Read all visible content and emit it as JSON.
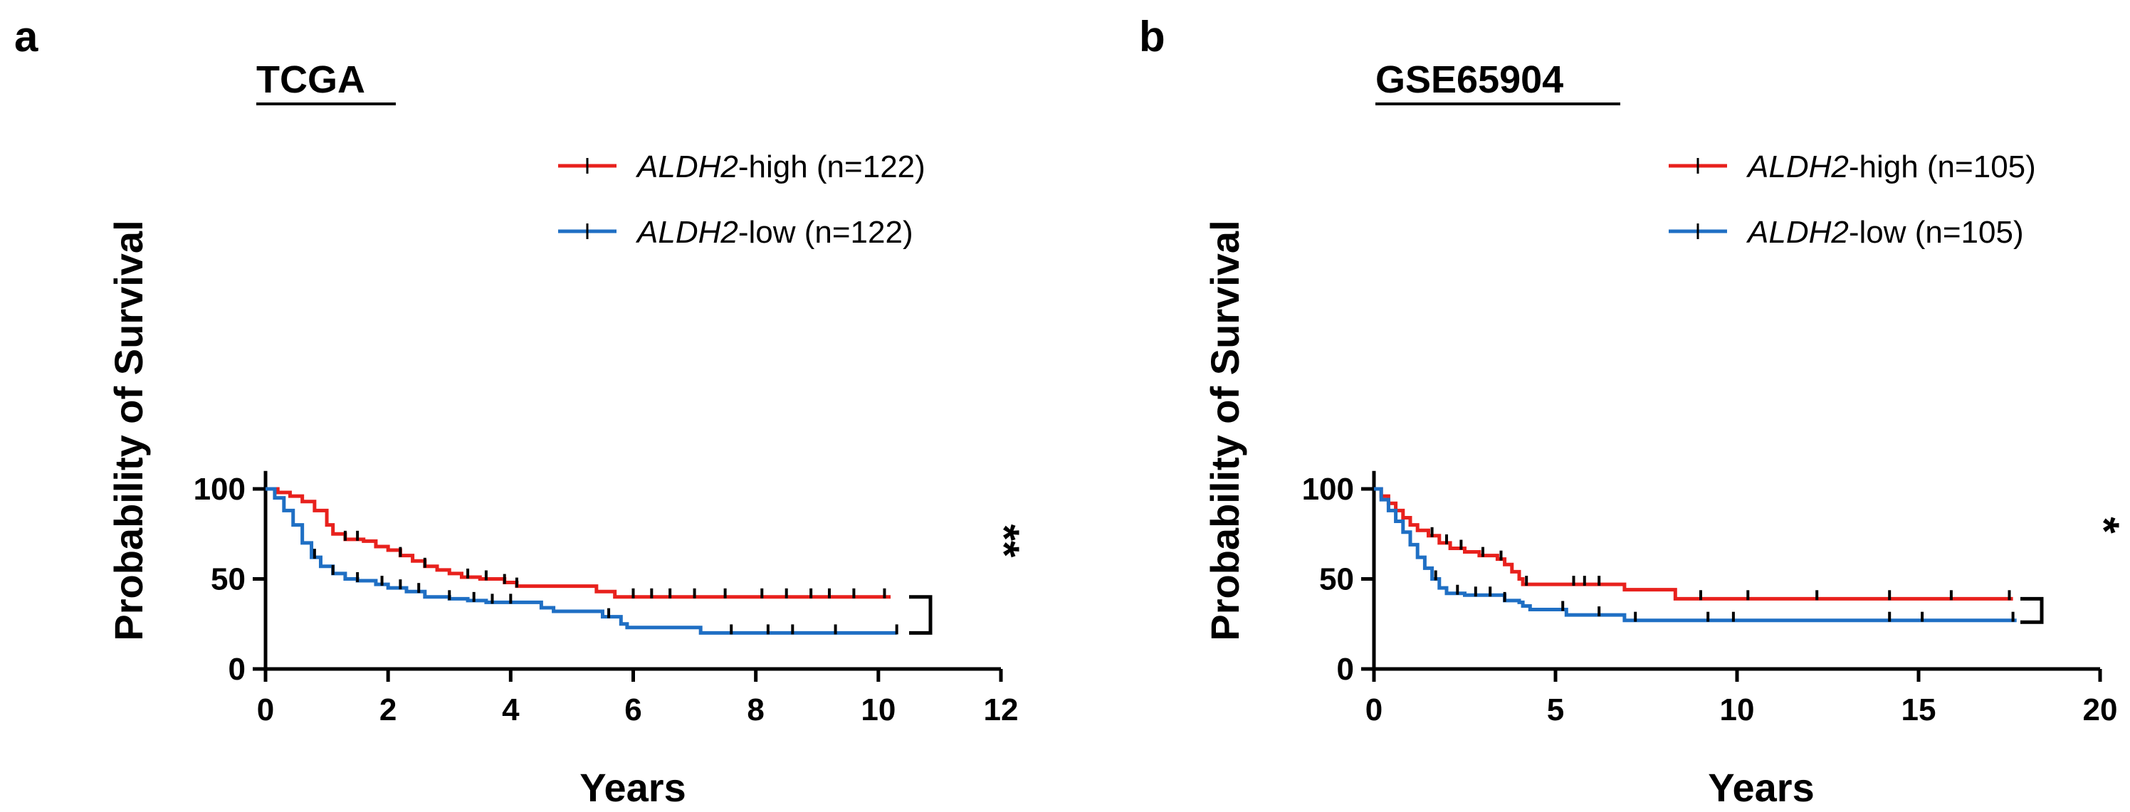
{
  "chart_data": [
    {
      "type": "line",
      "subtype": "kaplan-meier",
      "panel": "a",
      "title": "TCGA",
      "xlabel": "Years",
      "ylabel": "Probability of Survival",
      "xlim": [
        0,
        12
      ],
      "ylim": [
        0,
        110
      ],
      "xticks": [
        0,
        2,
        4,
        6,
        8,
        10,
        12
      ],
      "yticks": [
        0,
        50,
        100
      ],
      "legend_position": "top-right",
      "significance": "**",
      "significance_between": [
        40,
        20
      ],
      "series": [
        {
          "name_italic": "ALDH2",
          "name_rest": "-high (n=122)",
          "color": "#e8211d",
          "points": [
            [
              0,
              100
            ],
            [
              0.2,
              98
            ],
            [
              0.4,
              96
            ],
            [
              0.6,
              93
            ],
            [
              0.8,
              88
            ],
            [
              1.0,
              80
            ],
            [
              1.1,
              75
            ],
            [
              1.3,
              72
            ],
            [
              1.6,
              71
            ],
            [
              1.8,
              68
            ],
            [
              2.0,
              66
            ],
            [
              2.2,
              63
            ],
            [
              2.4,
              60
            ],
            [
              2.6,
              57
            ],
            [
              2.8,
              55
            ],
            [
              3.0,
              53
            ],
            [
              3.2,
              51
            ],
            [
              3.5,
              50
            ],
            [
              3.9,
              48
            ],
            [
              4.1,
              46
            ],
            [
              4.6,
              46
            ],
            [
              5.3,
              46
            ],
            [
              5.4,
              43
            ],
            [
              5.7,
              43
            ],
            [
              5.7,
              40
            ],
            [
              10.2,
              40
            ]
          ],
          "censor": [
            1.3,
            1.5,
            2.2,
            2.6,
            3.3,
            3.6,
            3.9,
            4.1,
            6.0,
            6.3,
            6.6,
            7.0,
            7.5,
            8.1,
            8.5,
            8.9,
            9.2,
            9.6,
            10.1
          ]
        },
        {
          "name_italic": "ALDH2",
          "name_rest": "-low (n=122)",
          "color": "#1f6fc4",
          "points": [
            [
              0,
              100
            ],
            [
              0.15,
              95
            ],
            [
              0.3,
              88
            ],
            [
              0.45,
              80
            ],
            [
              0.6,
              70
            ],
            [
              0.75,
              62
            ],
            [
              0.9,
              57
            ],
            [
              1.1,
              53
            ],
            [
              1.3,
              50
            ],
            [
              1.5,
              49
            ],
            [
              1.8,
              47
            ],
            [
              2.0,
              45
            ],
            [
              2.3,
              43
            ],
            [
              2.6,
              40
            ],
            [
              3.0,
              39
            ],
            [
              3.3,
              38
            ],
            [
              3.6,
              37
            ],
            [
              4.3,
              37
            ],
            [
              4.5,
              34
            ],
            [
              4.7,
              32
            ],
            [
              5.3,
              32
            ],
            [
              5.5,
              29
            ],
            [
              5.8,
              25
            ],
            [
              5.9,
              23
            ],
            [
              7.0,
              23
            ],
            [
              7.1,
              20
            ],
            [
              10.3,
              20
            ]
          ],
          "censor": [
            0.8,
            1.1,
            1.5,
            1.9,
            2.2,
            2.5,
            3.0,
            3.4,
            3.7,
            4.0,
            5.6,
            7.6,
            8.2,
            8.6,
            9.3,
            10.3
          ]
        }
      ]
    },
    {
      "type": "line",
      "subtype": "kaplan-meier",
      "panel": "b",
      "title": "GSE65904",
      "xlabel": "Years",
      "ylabel": "Probability of Survival",
      "xlim": [
        0,
        20
      ],
      "ylim": [
        0,
        110
      ],
      "xticks": [
        0,
        5,
        10,
        15,
        20
      ],
      "yticks": [
        0,
        50,
        100
      ],
      "legend_position": "top-right",
      "significance": "*",
      "significance_between": [
        39,
        26
      ],
      "series": [
        {
          "name_italic": "ALDH2",
          "name_rest": "-high (n=105)",
          "color": "#e8211d",
          "points": [
            [
              0,
              100
            ],
            [
              0.2,
              96
            ],
            [
              0.4,
              92
            ],
            [
              0.6,
              88
            ],
            [
              0.8,
              84
            ],
            [
              1.0,
              80
            ],
            [
              1.2,
              77
            ],
            [
              1.5,
              74
            ],
            [
              1.8,
              70
            ],
            [
              2.1,
              67
            ],
            [
              2.5,
              65
            ],
            [
              2.9,
              63
            ],
            [
              3.4,
              61
            ],
            [
              3.6,
              58
            ],
            [
              3.8,
              54
            ],
            [
              4.0,
              50
            ],
            [
              4.1,
              47
            ],
            [
              4.5,
              47
            ],
            [
              6.8,
              47
            ],
            [
              6.9,
              44
            ],
            [
              8.2,
              44
            ],
            [
              8.3,
              39
            ],
            [
              17.6,
              39
            ]
          ],
          "censor": [
            1.6,
            2.0,
            2.4,
            3.0,
            3.5,
            4.2,
            5.5,
            5.8,
            6.2,
            9.0,
            10.3,
            12.2,
            14.2,
            15.9,
            17.5
          ]
        },
        {
          "name_italic": "ALDH2",
          "name_rest": "-low (n=105)",
          "color": "#1f6fc4",
          "points": [
            [
              0,
              100
            ],
            [
              0.2,
              94
            ],
            [
              0.4,
              88
            ],
            [
              0.6,
              82
            ],
            [
              0.8,
              76
            ],
            [
              1.0,
              69
            ],
            [
              1.2,
              62
            ],
            [
              1.4,
              56
            ],
            [
              1.6,
              50
            ],
            [
              1.8,
              45
            ],
            [
              2.0,
              42
            ],
            [
              2.5,
              41
            ],
            [
              3.5,
              41
            ],
            [
              3.6,
              38
            ],
            [
              4.0,
              37
            ],
            [
              4.1,
              35
            ],
            [
              4.3,
              33
            ],
            [
              5.2,
              33
            ],
            [
              5.3,
              30
            ],
            [
              6.8,
              30
            ],
            [
              6.9,
              27
            ],
            [
              17.7,
              27
            ]
          ],
          "censor": [
            1.7,
            2.3,
            2.8,
            3.2,
            3.6,
            5.2,
            6.2,
            7.2,
            9.2,
            9.9,
            14.2,
            15.1,
            17.6
          ]
        }
      ]
    }
  ]
}
